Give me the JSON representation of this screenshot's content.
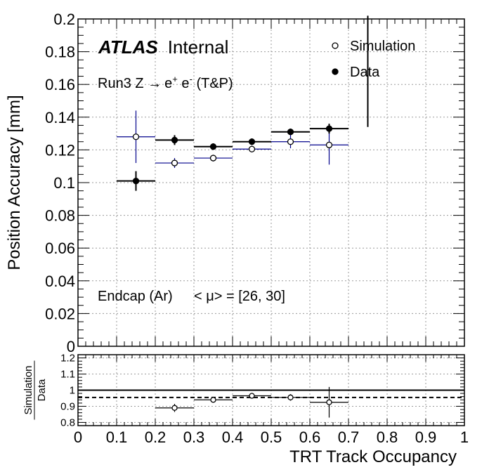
{
  "chart_data": {
    "type": "scatter",
    "xlabel": "TRT Track Occupancy",
    "ylabel": "Position Accuracy [mm]",
    "ratio_ylabel_num": "Simulation",
    "ratio_ylabel_den": "Data",
    "xlim": [
      0,
      1
    ],
    "ylim": [
      0,
      0.2
    ],
    "ratio_ylim": [
      0.78,
      1.22
    ],
    "grid": true,
    "legend_placement": "top-right",
    "x_ticks": [
      "0",
      "0.1",
      "0.2",
      "0.3",
      "0.4",
      "0.5",
      "0.6",
      "0.7",
      "0.8",
      "0.9",
      "1"
    ],
    "y_ticks": [
      "0",
      "0.02",
      "0.04",
      "0.06",
      "0.08",
      "0.1",
      "0.12",
      "0.14",
      "0.16",
      "0.18",
      "0.2"
    ],
    "ratio_y_ticks": [
      "0.8",
      "0.9",
      "1",
      "1.1",
      "1.2"
    ],
    "experiment_label": "ATLAS",
    "status_label": "Internal",
    "process_label_prefix": "Run3 Z ",
    "process_label_arrow": "→",
    "process_label_e1": "e",
    "process_label_sup1": "+",
    "process_label_e2": " e",
    "process_label_sup2": "-",
    "process_label_suffix": " (T&P)",
    "region_label": "Endcap (Ar)",
    "mu_label": "< μ> = [26, 30]",
    "series": [
      {
        "name": "Simulation",
        "marker": "open-circle",
        "color": "#00008b",
        "points": [
          {
            "x": 0.15,
            "xerr": 0.05,
            "y": 0.128,
            "yerr": 0.016
          },
          {
            "x": 0.25,
            "xerr": 0.05,
            "y": 0.112,
            "yerr": 0.003
          },
          {
            "x": 0.35,
            "xerr": 0.05,
            "y": 0.115,
            "yerr": 0.002
          },
          {
            "x": 0.45,
            "xerr": 0.05,
            "y": 0.1205,
            "yerr": 0.002
          },
          {
            "x": 0.55,
            "xerr": 0.05,
            "y": 0.125,
            "yerr": 0.004
          },
          {
            "x": 0.65,
            "xerr": 0.05,
            "y": 0.123,
            "yerr": 0.012
          }
        ]
      },
      {
        "name": "Data",
        "marker": "filled-circle",
        "color": "#000000",
        "points": [
          {
            "x": 0.15,
            "xerr": 0.05,
            "y": 0.101,
            "yerr": 0.006
          },
          {
            "x": 0.25,
            "xerr": 0.05,
            "y": 0.126,
            "yerr": 0.003
          },
          {
            "x": 0.35,
            "xerr": 0.05,
            "y": 0.122,
            "yerr": 0.002
          },
          {
            "x": 0.45,
            "xerr": 0.05,
            "y": 0.125,
            "yerr": 0.002
          },
          {
            "x": 0.55,
            "xerr": 0.05,
            "y": 0.131,
            "yerr": 0.002
          },
          {
            "x": 0.65,
            "xerr": 0.05,
            "y": 0.133,
            "yerr": 0.003
          },
          {
            "x": 0.75,
            "xerr": 0,
            "y": 0.168,
            "yerr": 0.034
          }
        ]
      }
    ],
    "ratio_points": [
      {
        "x": 0.25,
        "xerr": 0.05,
        "y": 0.89,
        "yerr": 0.025
      },
      {
        "x": 0.35,
        "xerr": 0.05,
        "y": 0.94,
        "yerr": 0.012
      },
      {
        "x": 0.45,
        "xerr": 0.05,
        "y": 0.965,
        "yerr": 0.01
      },
      {
        "x": 0.55,
        "xerr": 0.05,
        "y": 0.955,
        "yerr": 0.02
      },
      {
        "x": 0.65,
        "xerr": 0.05,
        "y": 0.925,
        "yerr": 0.095
      }
    ],
    "ratio_reference_line": 1.0,
    "ratio_mean_line": 0.955
  }
}
